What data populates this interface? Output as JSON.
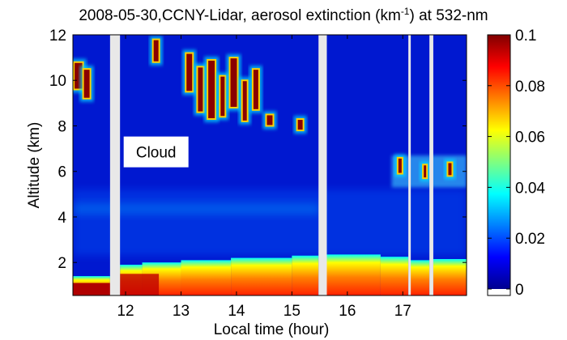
{
  "chart_data": {
    "type": "heatmap",
    "title": {
      "prefix": "2008-05-30,CCNY-Lidar, aerosol extinction (km",
      "superscript": "-1",
      "suffix": ") at 532-nm"
    },
    "xlabel": "Local time (hour)",
    "ylabel": "Altitude (km)",
    "xlim": [
      11.05,
      18.15
    ],
    "ylim": [
      0.55,
      12.0
    ],
    "xticks": [
      12,
      13,
      14,
      15,
      16,
      17
    ],
    "yticks": [
      2,
      4,
      6,
      8,
      10,
      12
    ],
    "colorbar": {
      "min": 0,
      "max": 0.1,
      "ticks": [
        {
          "value": 0,
          "label": "0"
        },
        {
          "value": 0.02,
          "label": "0.02"
        },
        {
          "value": 0.04,
          "label": "0.04"
        },
        {
          "value": 0.06,
          "label": "0.06"
        },
        {
          "value": 0.08,
          "label": "0.08"
        },
        {
          "value": 0.1,
          "label": "0.1"
        }
      ],
      "colormap": "jet"
    },
    "no_data_intervals": [
      [
        11.72,
        11.9
      ],
      [
        15.48,
        15.63
      ],
      [
        17.1,
        17.14
      ],
      [
        17.48,
        17.55
      ]
    ],
    "annotations": [
      {
        "text": "Cloud",
        "x": 12.55,
        "y": 6.75
      }
    ],
    "features": {
      "boundary_layer_top_km": 2.3,
      "cirrus_cloud_km": [
        8.0,
        11.5
      ],
      "elevated_layer_km": [
        5.5,
        6.5
      ],
      "background_extinction_aloft": 0.005
    }
  }
}
